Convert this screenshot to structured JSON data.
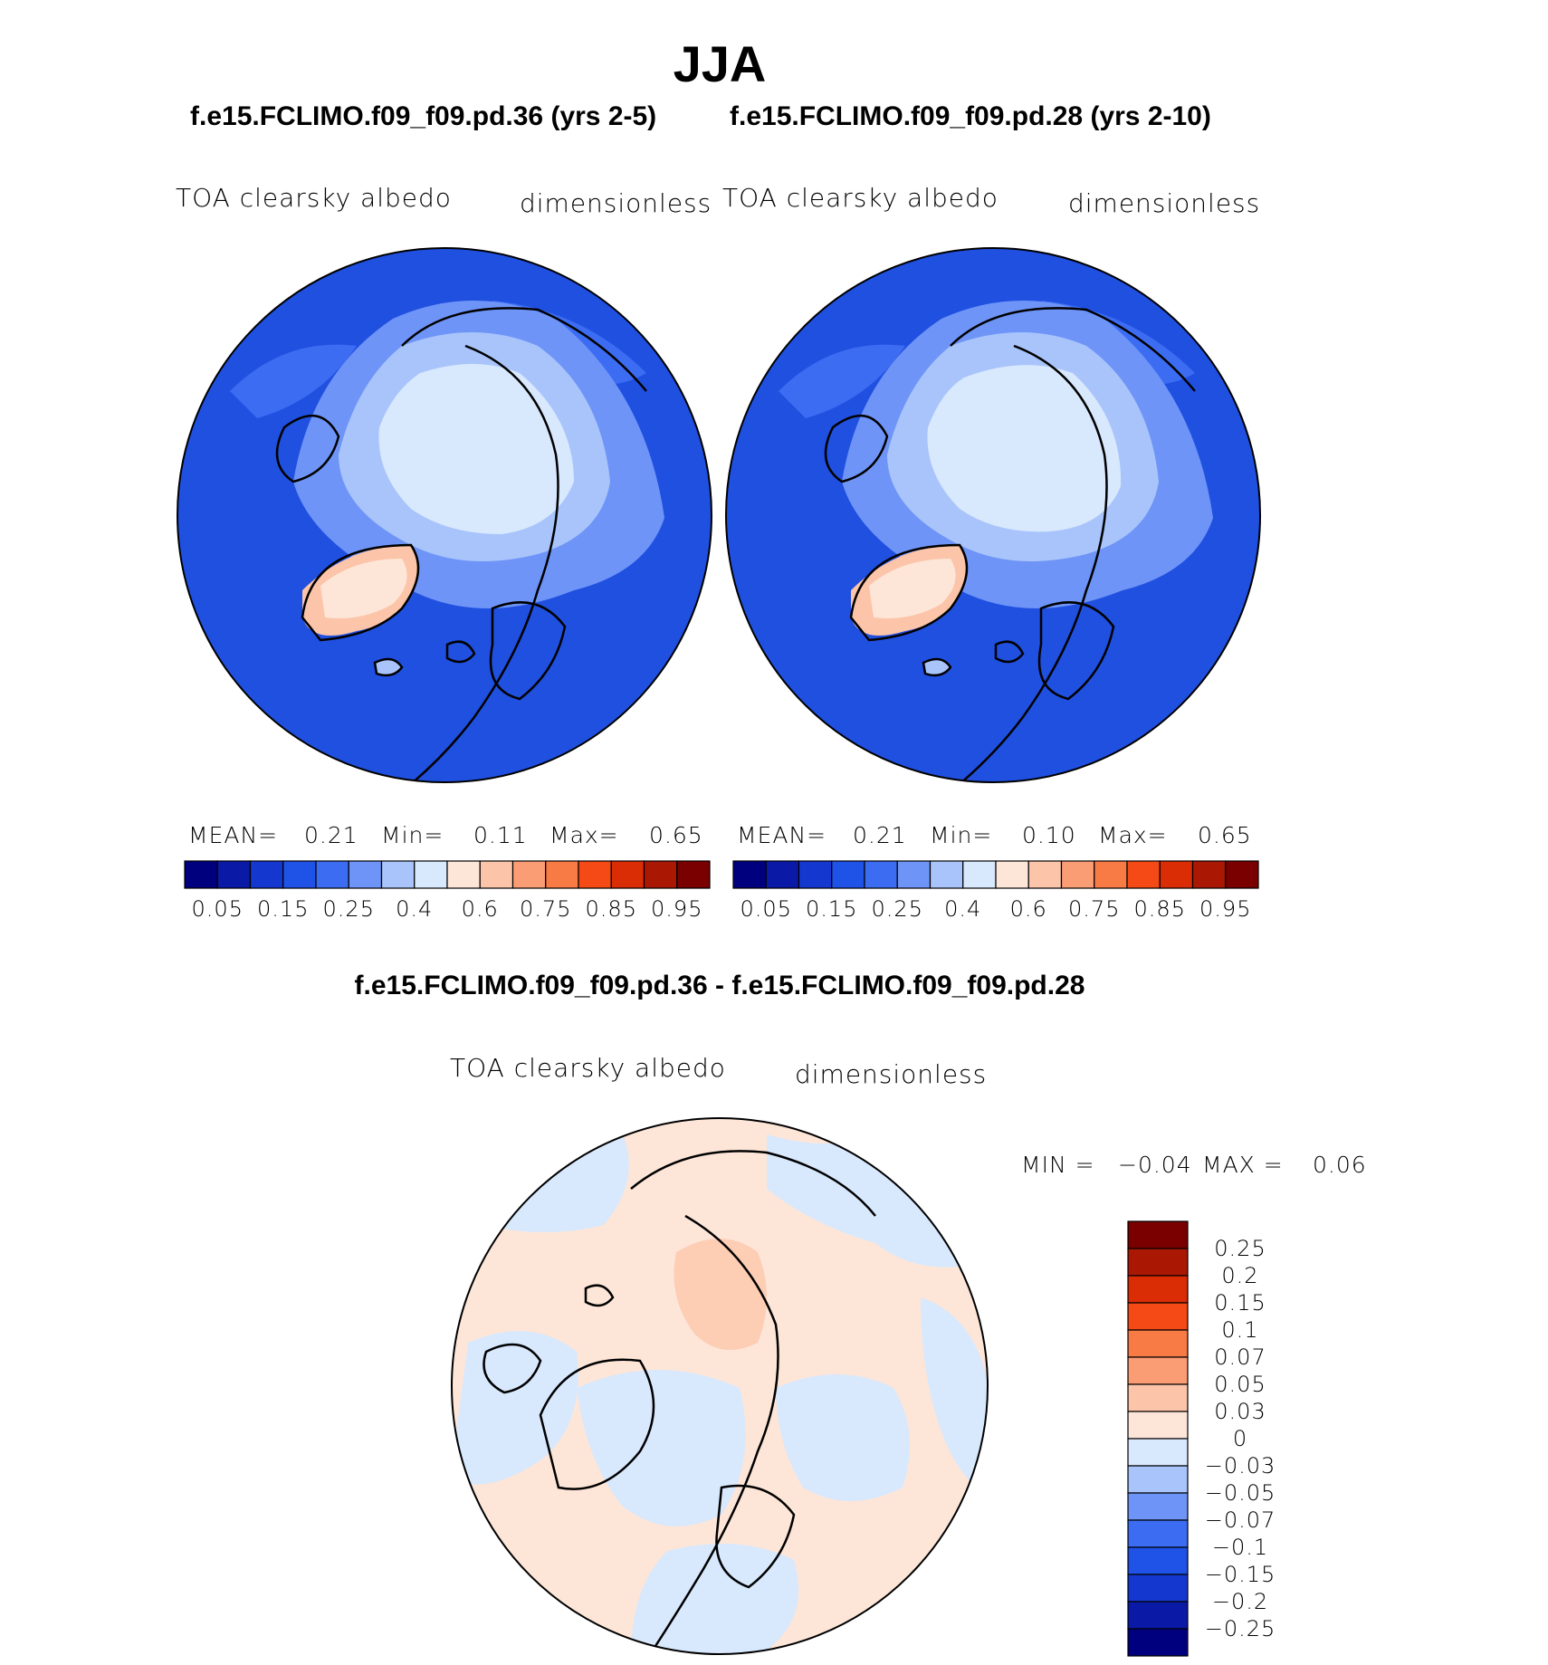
{
  "title": "JJA",
  "panels": [
    {
      "case_title": "f.e15.FCLIMO.f09_f09.pd.36 (yrs 2-5)",
      "variable": "TOA clearsky albedo",
      "units": "dimensionless",
      "stats": {
        "mean_label": "MEAN=",
        "mean": "0.21",
        "min_label": "Min=",
        "min": "0.11",
        "max_label": "Max=",
        "max": "0.65"
      }
    },
    {
      "case_title": "f.e15.FCLIMO.f09_f09.pd.28 (yrs 2-10)",
      "variable": "TOA clearsky albedo",
      "units": "dimensionless",
      "stats": {
        "mean_label": "MEAN=",
        "mean": "0.21",
        "min_label": "Min=",
        "min": "0.10",
        "max_label": "Max=",
        "max": "0.65"
      }
    }
  ],
  "colorbar_top": {
    "colors": [
      "#00007f",
      "#0a1aa6",
      "#1438cf",
      "#1f52e6",
      "#3c6cf2",
      "#6e94f7",
      "#a8c4fb",
      "#d8e8fd",
      "#fde6d8",
      "#fcc4a8",
      "#fa9c74",
      "#f87a44",
      "#f54a15",
      "#da2c05",
      "#aa1804",
      "#7a0000"
    ],
    "labels": [
      "0.05",
      "0.15",
      "0.25",
      "0.4",
      "0.6",
      "0.75",
      "0.85",
      "0.95"
    ]
  },
  "diff_panel": {
    "title": "f.e15.FCLIMO.f09_f09.pd.36 - f.e15.FCLIMO.f09_f09.pd.28",
    "variable": "TOA clearsky albedo",
    "units": "dimensionless",
    "min_label": "MIN =",
    "min": "−0.04",
    "max_label": "MAX =",
    "max": "0.06"
  },
  "colorbar_diff": {
    "colors": [
      "#7a0000",
      "#aa1804",
      "#da2c05",
      "#f54a15",
      "#f87a44",
      "#fa9c74",
      "#fcc4a8",
      "#fde6d8",
      "#d8e8fd",
      "#a8c4fb",
      "#6e94f7",
      "#3c6cf2",
      "#1f52e6",
      "#1438cf",
      "#0a1aa6",
      "#00007f"
    ],
    "labels": [
      "0.25",
      "0.2",
      "0.15",
      "0.1",
      "0.07",
      "0.05",
      "0.03",
      "0",
      "−0.03",
      "−0.05",
      "−0.07",
      "−0.1",
      "−0.15",
      "−0.2",
      "−0.25"
    ]
  },
  "map_colors": {
    "ocean": "#2050e0",
    "ocean_light": "#3c6cf2",
    "ice": "#d8e8fd",
    "ice_edge": "#a8c4fb",
    "greenland": "#fcc4a8",
    "diff_pos": "#fde6d8",
    "diff_neg": "#d8e8fd",
    "diff_pos2": "#fcc4a8"
  }
}
